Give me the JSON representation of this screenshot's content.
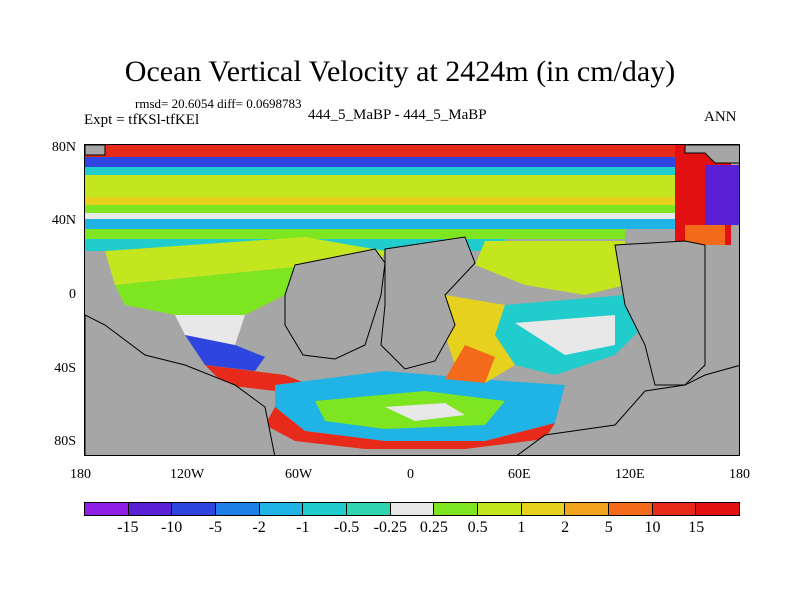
{
  "title": "Ocean Vertical Velocity at 2424m (in cm/day)",
  "stats": "rmsd= 20.6054 diff= 0.0698783",
  "expt": "Expt = tfKSl-tfKEl",
  "case": "444_5_MaBP - 444_5_MaBP",
  "season": "ANN",
  "lat_labels": [
    "80N",
    "40N",
    "0",
    "40S",
    "80S"
  ],
  "lon_labels": [
    "180",
    "120W",
    "60W",
    "0",
    "60E",
    "120E",
    "180"
  ],
  "colorbar": {
    "labels": [
      "-15",
      "-10",
      "-5",
      "-2",
      "-1",
      "-0.5",
      "-0.25",
      "0.25",
      "0.5",
      "1",
      "2",
      "5",
      "10",
      "15"
    ],
    "colors": [
      "#8f1fe6",
      "#5a21d4",
      "#2f45e0",
      "#1d7fe8",
      "#1fb3e6",
      "#21cccc",
      "#2dd6b0",
      "#e8e8e8",
      "#7ee620",
      "#c4e61e",
      "#e6d21e",
      "#f2a51c",
      "#f26a1a",
      "#e82a1a",
      "#e21010"
    ]
  },
  "colors": {
    "land": "#a6a6a6",
    "neutral": "#e8e8e8"
  }
}
